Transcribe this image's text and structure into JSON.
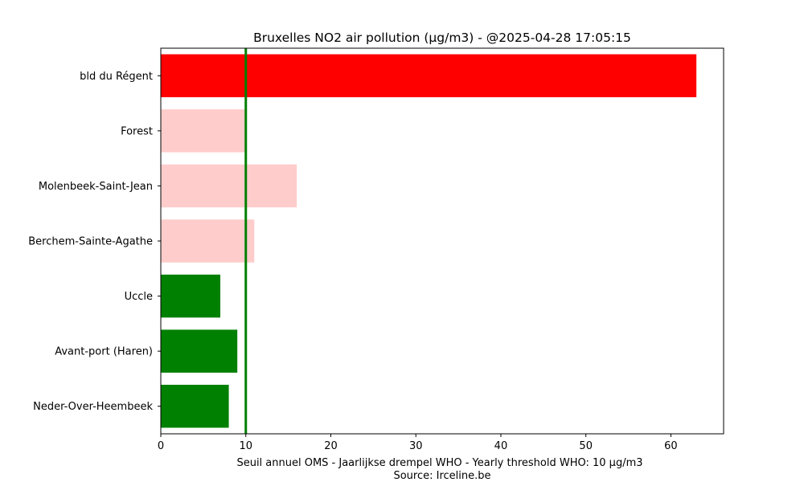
{
  "chart_data": {
    "type": "bar",
    "orientation": "horizontal",
    "title": "Bruxelles NO2 air pollution (µg/m3) - @2025-04-28 17:05:15",
    "xlabel": "Seuil annuel OMS - Jaarlijkse drempel WHO - Yearly threshold WHO: 10 µg/m3",
    "source": "Source: Irceline.be",
    "xlim": [
      0,
      66.2
    ],
    "x_ticks": [
      0,
      10,
      20,
      30,
      40,
      50,
      60
    ],
    "threshold": 10,
    "threshold_color": "#008000",
    "categories": [
      "bld du Régent",
      "Forest",
      "Molenbeek-Saint-Jean",
      "Berchem-Sainte-Agathe",
      "Uccle",
      "Avant-port (Haren)",
      "Neder-Over-Heembeek"
    ],
    "values": [
      63,
      10,
      16,
      11,
      7,
      9,
      8
    ],
    "colors": [
      "#ff0000",
      "#ffcccc",
      "#ffcccc",
      "#ffcccc",
      "#008000",
      "#008000",
      "#008000"
    ],
    "grid": false
  }
}
